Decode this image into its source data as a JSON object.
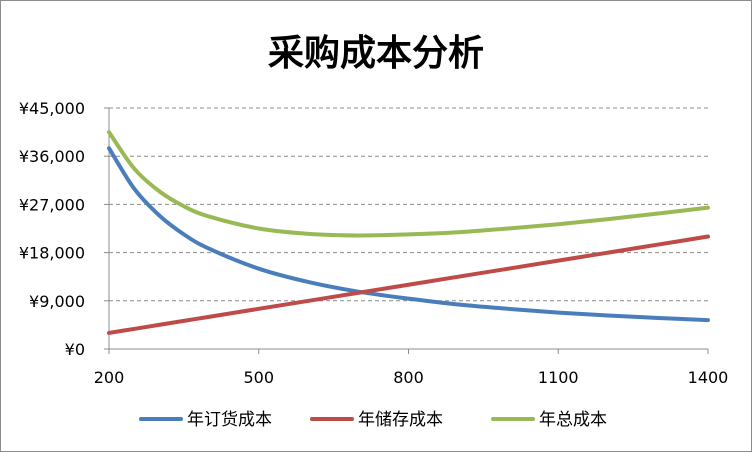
{
  "chart_data": {
    "type": "line",
    "title": "采购成本分析",
    "xlabel": "",
    "ylabel": "",
    "xlim": [
      200,
      1400
    ],
    "ylim": [
      0,
      45000
    ],
    "x_ticks": [
      200,
      500,
      800,
      1100,
      1400
    ],
    "x_tick_labels": [
      "200",
      "500",
      "800",
      "1100",
      "1400"
    ],
    "y_ticks": [
      0,
      9000,
      18000,
      27000,
      36000,
      45000
    ],
    "y_tick_labels": [
      "¥0",
      "¥9,000",
      "¥18,000",
      "¥27,000",
      "¥36,000",
      "¥45,000"
    ],
    "grid": true,
    "legend_position": "bottom",
    "x": [
      200,
      250,
      300,
      350,
      400,
      500,
      600,
      700,
      800,
      900,
      1000,
      1100,
      1200,
      1300,
      1400
    ],
    "series": [
      {
        "name": "年订货成本",
        "color": "#4a7ebb",
        "values": [
          37500,
          30000,
          25000,
          21400,
          18750,
          15000,
          12500,
          10700,
          9400,
          8300,
          7500,
          6800,
          6250,
          5800,
          5400
        ]
      },
      {
        "name": "年储存成本",
        "color": "#be4b48",
        "values": [
          3000,
          3750,
          4500,
          5250,
          6000,
          7500,
          9000,
          10500,
          12000,
          13500,
          15000,
          16500,
          18000,
          19500,
          21000
        ]
      },
      {
        "name": "年总成本",
        "color": "#98b954",
        "values": [
          40500,
          33750,
          29500,
          26650,
          24750,
          22500,
          21500,
          21200,
          21400,
          21800,
          22500,
          23300,
          24250,
          25300,
          26400
        ]
      }
    ]
  }
}
